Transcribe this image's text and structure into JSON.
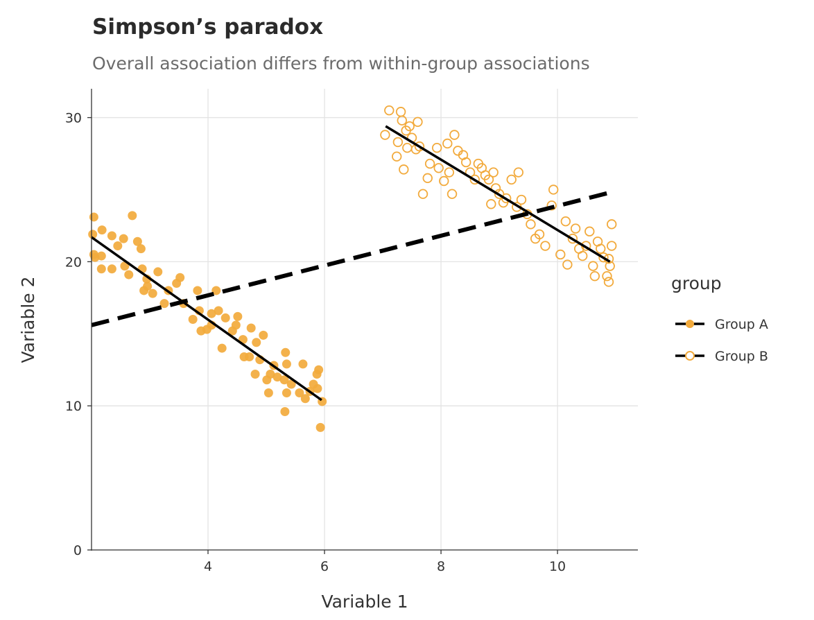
{
  "chart_data": {
    "type": "scatter",
    "title": "Simpson’s paradox",
    "subtitle": "Overall association differs from within-group associations",
    "xlabel": "Variable 1",
    "ylabel": "Variable 2",
    "xlim": [
      2,
      11.38
    ],
    "ylim": [
      0,
      32
    ],
    "xticks": [
      4,
      6,
      8,
      10
    ],
    "yticks": [
      0,
      10,
      20,
      30
    ],
    "grid": true,
    "legend": {
      "title": "group",
      "placement": "right"
    },
    "point_color": "#F2AA3C",
    "series": [
      {
        "name": "Group A",
        "marker": "filled-circle",
        "points": [
          [
            2.04,
            23.1
          ],
          [
            2.02,
            21.9
          ],
          [
            2.04,
            20.5
          ],
          [
            2.06,
            20.3
          ],
          [
            2.17,
            20.4
          ],
          [
            2.18,
            22.2
          ],
          [
            2.17,
            19.5
          ],
          [
            2.35,
            19.5
          ],
          [
            2.35,
            21.8
          ],
          [
            2.45,
            21.1
          ],
          [
            2.55,
            21.6
          ],
          [
            2.57,
            19.7
          ],
          [
            2.64,
            19.1
          ],
          [
            2.7,
            23.2
          ],
          [
            2.79,
            21.4
          ],
          [
            2.85,
            20.9
          ],
          [
            2.87,
            19.5
          ],
          [
            2.9,
            18.0
          ],
          [
            2.96,
            18.3
          ],
          [
            2.95,
            18.8
          ],
          [
            3.14,
            19.3
          ],
          [
            3.05,
            17.8
          ],
          [
            3.25,
            17.1
          ],
          [
            3.32,
            18.0
          ],
          [
            3.46,
            18.5
          ],
          [
            3.52,
            18.9
          ],
          [
            3.58,
            17.1
          ],
          [
            3.74,
            16.0
          ],
          [
            3.82,
            18.0
          ],
          [
            3.85,
            16.6
          ],
          [
            3.88,
            15.2
          ],
          [
            3.98,
            15.3
          ],
          [
            4.06,
            16.4
          ],
          [
            4.06,
            15.6
          ],
          [
            4.14,
            18.0
          ],
          [
            4.18,
            16.6
          ],
          [
            4.24,
            14.0
          ],
          [
            4.3,
            16.1
          ],
          [
            4.42,
            15.2
          ],
          [
            4.48,
            15.6
          ],
          [
            4.51,
            16.2
          ],
          [
            4.6,
            14.6
          ],
          [
            4.62,
            13.4
          ],
          [
            4.71,
            13.4
          ],
          [
            4.74,
            15.4
          ],
          [
            4.81,
            12.2
          ],
          [
            4.83,
            14.4
          ],
          [
            4.89,
            13.2
          ],
          [
            4.95,
            14.9
          ],
          [
            5.01,
            11.8
          ],
          [
            5.04,
            10.9
          ],
          [
            5.07,
            12.2
          ],
          [
            5.13,
            12.8
          ],
          [
            5.19,
            12.0
          ],
          [
            5.31,
            11.8
          ],
          [
            5.33,
            13.7
          ],
          [
            5.35,
            12.9
          ],
          [
            5.35,
            10.9
          ],
          [
            5.32,
            9.6
          ],
          [
            5.43,
            11.5
          ],
          [
            5.57,
            10.9
          ],
          [
            5.63,
            12.9
          ],
          [
            5.67,
            10.5
          ],
          [
            5.75,
            11.0
          ],
          [
            5.81,
            11.5
          ],
          [
            5.87,
            12.2
          ],
          [
            5.9,
            12.5
          ],
          [
            5.96,
            10.3
          ],
          [
            5.93,
            8.5
          ],
          [
            5.88,
            11.2
          ]
        ],
        "fit": [
          [
            2.0,
            21.7
          ],
          [
            5.95,
            10.4
          ]
        ]
      },
      {
        "name": "Group B",
        "marker": "open-circle",
        "points": [
          [
            7.04,
            28.8
          ],
          [
            7.11,
            30.5
          ],
          [
            7.31,
            30.4
          ],
          [
            7.26,
            28.3
          ],
          [
            7.24,
            27.3
          ],
          [
            7.36,
            26.4
          ],
          [
            7.33,
            29.8
          ],
          [
            7.4,
            29.1
          ],
          [
            7.46,
            29.4
          ],
          [
            7.5,
            28.6
          ],
          [
            7.42,
            27.9
          ],
          [
            7.6,
            29.7
          ],
          [
            7.57,
            27.8
          ],
          [
            7.63,
            28.0
          ],
          [
            7.69,
            24.7
          ],
          [
            7.77,
            25.8
          ],
          [
            7.81,
            26.8
          ],
          [
            7.93,
            27.9
          ],
          [
            7.96,
            26.5
          ],
          [
            8.05,
            25.6
          ],
          [
            8.11,
            28.2
          ],
          [
            8.14,
            26.2
          ],
          [
            8.19,
            24.7
          ],
          [
            8.23,
            28.8
          ],
          [
            8.29,
            27.7
          ],
          [
            8.38,
            27.4
          ],
          [
            8.43,
            26.9
          ],
          [
            8.5,
            26.2
          ],
          [
            8.58,
            25.7
          ],
          [
            8.64,
            26.8
          ],
          [
            8.7,
            26.5
          ],
          [
            8.76,
            26.0
          ],
          [
            8.82,
            25.7
          ],
          [
            8.86,
            24.0
          ],
          [
            8.9,
            26.2
          ],
          [
            8.94,
            25.1
          ],
          [
            9.0,
            24.7
          ],
          [
            9.07,
            24.1
          ],
          [
            9.12,
            24.4
          ],
          [
            9.21,
            25.7
          ],
          [
            9.3,
            23.8
          ],
          [
            9.33,
            26.2
          ],
          [
            9.38,
            24.3
          ],
          [
            9.48,
            23.3
          ],
          [
            9.54,
            22.6
          ],
          [
            9.62,
            21.6
          ],
          [
            9.69,
            21.9
          ],
          [
            9.79,
            21.1
          ],
          [
            9.9,
            23.9
          ],
          [
            9.93,
            25.0
          ],
          [
            10.05,
            20.5
          ],
          [
            10.14,
            22.8
          ],
          [
            10.17,
            19.8
          ],
          [
            10.26,
            21.6
          ],
          [
            10.31,
            22.3
          ],
          [
            10.37,
            20.9
          ],
          [
            10.43,
            20.4
          ],
          [
            10.49,
            21.1
          ],
          [
            10.55,
            22.1
          ],
          [
            10.61,
            19.7
          ],
          [
            10.64,
            19.0
          ],
          [
            10.69,
            21.4
          ],
          [
            10.74,
            20.9
          ],
          [
            10.79,
            20.3
          ],
          [
            10.85,
            19.0
          ],
          [
            10.88,
            18.6
          ],
          [
            10.9,
            19.7
          ],
          [
            10.93,
            22.6
          ],
          [
            10.93,
            21.1
          ],
          [
            10.88,
            20.2
          ]
        ],
        "fit": [
          [
            7.05,
            29.4
          ],
          [
            10.9,
            20.0
          ]
        ]
      }
    ],
    "overall_fit": {
      "style": "dashed",
      "points": [
        [
          2.0,
          15.6
        ],
        [
          10.9,
          24.8
        ]
      ]
    }
  }
}
